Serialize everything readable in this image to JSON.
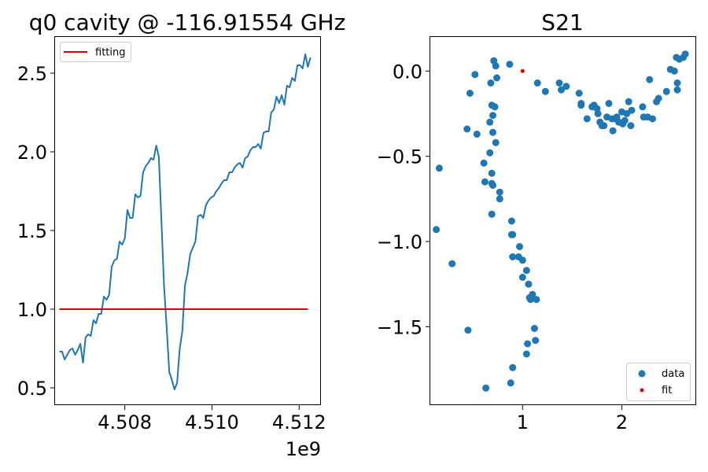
{
  "chart_data": [
    {
      "type": "line",
      "title": "q0 cavity @ -116.91554 GHz",
      "xlabel": "",
      "ylabel": "",
      "x_offset_label": "1e9",
      "xlim": [
        4.5064,
        4.5125
      ],
      "ylim": [
        0.39,
        2.73
      ],
      "xticks": [
        4.508,
        4.51,
        4.512
      ],
      "xtick_labels": [
        "4.508",
        "4.510",
        "4.512"
      ],
      "yticks": [
        0.5,
        1.0,
        1.5,
        2.0,
        2.5
      ],
      "ytick_labels": [
        "0.5",
        "1.0",
        "1.5",
        "2.0",
        "2.5"
      ],
      "legend": {
        "position": "top-left",
        "entries": [
          "fitting"
        ]
      },
      "series": [
        {
          "name": "",
          "color": "#1f77b4",
          "x": [
            4.5065,
            4.50656,
            4.50662,
            4.50668,
            4.50674,
            4.5068,
            4.50686,
            4.50692,
            4.50698,
            4.50704,
            4.5071,
            4.50716,
            4.50722,
            4.50728,
            4.50734,
            4.5074,
            4.50746,
            4.50752,
            4.50758,
            4.50764,
            4.5077,
            4.50776,
            4.50782,
            4.50788,
            4.50794,
            4.508,
            4.50806,
            4.50812,
            4.50818,
            4.50824,
            4.5083,
            4.50836,
            4.50842,
            4.50848,
            4.50854,
            4.5086,
            4.50866,
            4.50872,
            4.50878,
            4.50884,
            4.5089,
            4.50896,
            4.50902,
            4.50908,
            4.50914,
            4.5092,
            4.50926,
            4.50932,
            4.50938,
            4.50944,
            4.5095,
            4.50956,
            4.50962,
            4.50968,
            4.50974,
            4.5098,
            4.50986,
            4.50992,
            4.50998,
            4.51004,
            4.5101,
            4.51016,
            4.51022,
            4.51028,
            4.51034,
            4.5104,
            4.51046,
            4.51052,
            4.51058,
            4.51064,
            4.5107,
            4.51076,
            4.51082,
            4.51088,
            4.51094,
            4.511,
            4.51106,
            4.51112,
            4.51118,
            4.51124,
            4.5113,
            4.51136,
            4.51142,
            4.51148,
            4.51154,
            4.5116,
            4.51166,
            4.51172,
            4.51178,
            4.51184,
            4.5119,
            4.51196,
            4.51202,
            4.51208,
            4.51214,
            4.5122,
            4.51226
          ],
          "y": [
            0.73,
            0.73,
            0.68,
            0.71,
            0.74,
            0.75,
            0.71,
            0.74,
            0.78,
            0.66,
            0.82,
            0.84,
            0.83,
            0.93,
            0.91,
            0.97,
            0.97,
            1.08,
            1.06,
            1.09,
            1.27,
            1.31,
            1.32,
            1.43,
            1.41,
            1.45,
            1.63,
            1.58,
            1.58,
            1.73,
            1.71,
            1.72,
            1.87,
            1.91,
            1.93,
            1.96,
            1.95,
            2.04,
            1.97,
            1.56,
            1.15,
            0.89,
            0.6,
            0.55,
            0.49,
            0.53,
            0.75,
            0.86,
            1.15,
            1.23,
            1.35,
            1.39,
            1.43,
            1.59,
            1.6,
            1.58,
            1.66,
            1.69,
            1.71,
            1.72,
            1.75,
            1.77,
            1.8,
            1.82,
            1.82,
            1.87,
            1.87,
            1.9,
            1.92,
            1.93,
            1.9,
            1.96,
            1.97,
            2.01,
            2.03,
            2.03,
            2.05,
            2.02,
            2.12,
            2.13,
            2.13,
            2.25,
            2.27,
            2.35,
            2.31,
            2.36,
            2.3,
            2.42,
            2.41,
            2.47,
            2.45,
            2.55,
            2.55,
            2.53,
            2.62,
            2.54,
            2.6
          ]
        },
        {
          "name": "fitting",
          "color": "#e00000",
          "x": [
            4.5065,
            4.5122
          ],
          "y": [
            1.0,
            1.0
          ]
        }
      ]
    },
    {
      "type": "scatter",
      "title": "S21",
      "xlabel": "",
      "ylabel": "",
      "xlim": [
        0.07,
        2.75
      ],
      "ylim": [
        -1.96,
        0.2
      ],
      "xticks": [
        1,
        2
      ],
      "xtick_labels": [
        "1",
        "2"
      ],
      "yticks": [
        0.0,
        -0.5,
        -1.0,
        -1.5
      ],
      "ytick_labels": [
        "0.0",
        "−0.5",
        "−1.0",
        "−1.5"
      ],
      "legend": {
        "position": "bottom-right",
        "entries": [
          "data",
          "fit"
        ]
      },
      "series": [
        {
          "name": "data",
          "color": "#1f77b4",
          "points": [
            [
              0.63,
              -1.86
            ],
            [
              0.88,
              -1.83
            ],
            [
              0.9,
              -1.74
            ],
            [
              1.04,
              -1.66
            ],
            [
              1.05,
              -1.6
            ],
            [
              1.13,
              -1.58
            ],
            [
              1.12,
              -1.51
            ],
            [
              0.45,
              -1.52
            ],
            [
              1.14,
              -1.34
            ],
            [
              1.08,
              -1.34
            ],
            [
              1.1,
              -1.31
            ],
            [
              1.07,
              -1.33
            ],
            [
              1.06,
              -1.25
            ],
            [
              1.0,
              -1.21
            ],
            [
              1.04,
              -1.17
            ],
            [
              1.0,
              -1.11
            ],
            [
              0.96,
              -1.09
            ],
            [
              0.9,
              -1.09
            ],
            [
              0.97,
              -1.03
            ],
            [
              0.9,
              -0.96
            ],
            [
              0.89,
              -0.96
            ],
            [
              0.89,
              -0.88
            ],
            [
              0.69,
              -0.84
            ],
            [
              0.77,
              -0.75
            ],
            [
              0.77,
              -0.71
            ],
            [
              0.7,
              -0.67
            ],
            [
              0.69,
              -0.66
            ],
            [
              0.62,
              -0.65
            ],
            [
              0.69,
              -0.6
            ],
            [
              0.61,
              -0.54
            ],
            [
              0.67,
              -0.48
            ],
            [
              0.73,
              -0.42
            ],
            [
              0.7,
              -0.36
            ],
            [
              0.54,
              -0.37
            ],
            [
              0.44,
              -0.34
            ],
            [
              0.67,
              -0.3
            ],
            [
              0.7,
              -0.26
            ],
            [
              0.72,
              -0.21
            ],
            [
              0.69,
              -0.2
            ],
            [
              0.47,
              -0.13
            ],
            [
              0.68,
              -0.07
            ],
            [
              0.74,
              -0.04
            ],
            [
              0.52,
              -0.02
            ],
            [
              0.73,
              0.03
            ],
            [
              0.71,
              0.06
            ],
            [
              0.87,
              0.04
            ],
            [
              0.16,
              -0.57
            ],
            [
              0.13,
              -0.93
            ],
            [
              0.29,
              -1.13
            ],
            [
              1.15,
              -0.07
            ],
            [
              1.23,
              -0.12
            ],
            [
              1.37,
              -0.07
            ],
            [
              1.39,
              -0.11
            ],
            [
              1.44,
              -0.09
            ],
            [
              1.57,
              -0.13
            ],
            [
              1.59,
              -0.19
            ],
            [
              1.59,
              -0.2
            ],
            [
              1.65,
              -0.28
            ],
            [
              1.7,
              -0.21
            ],
            [
              1.72,
              -0.2
            ],
            [
              1.75,
              -0.22
            ],
            [
              1.76,
              -0.25
            ],
            [
              1.78,
              -0.3
            ],
            [
              1.8,
              -0.32
            ],
            [
              1.82,
              -0.32
            ],
            [
              1.85,
              -0.27
            ],
            [
              1.87,
              -0.19
            ],
            [
              1.9,
              -0.28
            ],
            [
              1.91,
              -0.35
            ],
            [
              1.93,
              -0.28
            ],
            [
              1.95,
              -0.27
            ],
            [
              1.97,
              -0.3
            ],
            [
              2.0,
              -0.24
            ],
            [
              2.01,
              -0.31
            ],
            [
              2.03,
              -0.29
            ],
            [
              2.05,
              -0.25
            ],
            [
              2.07,
              -0.18
            ],
            [
              2.09,
              -0.32
            ],
            [
              2.1,
              -0.23
            ],
            [
              2.21,
              -0.21
            ],
            [
              2.22,
              -0.27
            ],
            [
              2.26,
              -0.27
            ],
            [
              2.28,
              -0.05
            ],
            [
              2.31,
              -0.28
            ],
            [
              2.35,
              -0.18
            ],
            [
              2.37,
              -0.16
            ],
            [
              2.45,
              -0.12
            ],
            [
              2.49,
              0.01
            ],
            [
              2.53,
              0.0
            ],
            [
              2.55,
              0.08
            ],
            [
              2.56,
              -0.07
            ],
            [
              2.56,
              -0.11
            ],
            [
              2.58,
              0.07
            ],
            [
              2.62,
              0.08
            ],
            [
              2.64,
              0.1
            ]
          ]
        },
        {
          "name": "fit",
          "color": "#e00000",
          "points": [
            [
              1.0,
              0.0
            ]
          ]
        }
      ]
    }
  ]
}
